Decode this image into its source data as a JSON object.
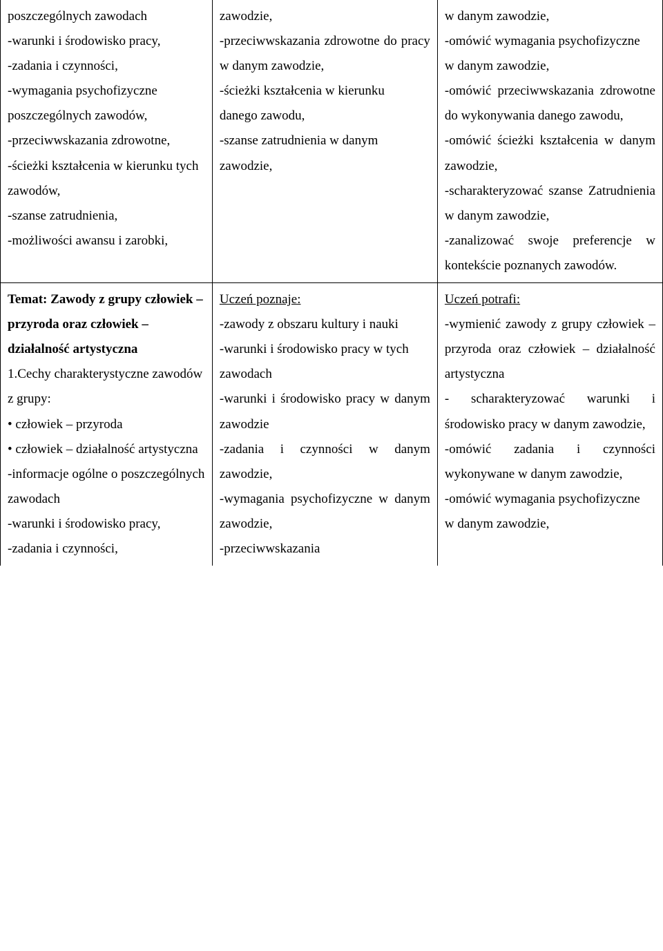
{
  "row1": {
    "col1": [
      "poszczególnych zawodach",
      "-warunki i środowisko pracy,",
      "-zadania i czynności,",
      "-wymagania psychofizyczne poszczególnych zawodów,",
      "-przeciwwskazania zdrowotne,",
      "-ścieżki kształcenia w kierunku tych zawodów,",
      "-szanse zatrudnienia,",
      "-możliwości awansu i zarobki,"
    ],
    "col2": [
      "zawodzie,",
      "-przeciwwskazania zdrowotne do pracy w danym zawodzie,",
      "-ścieżki kształcenia w kierunku",
      "danego zawodu,",
      "-szanse zatrudnienia w danym",
      "zawodzie,"
    ],
    "col3": [
      "w danym zawodzie,",
      "-omówić wymagania psychofizyczne",
      "w danym zawodzie,",
      "-omówić przeciwwskazania zdrowotne do wykonywania danego zawodu,",
      "-omówić ścieżki kształcenia w danym zawodzie,",
      "-scharakteryzować szanse Zatrudnienia w danym zawodzie,",
      "-zanalizować swoje preferencje w kontekście poznanych zawodów."
    ]
  },
  "row2": {
    "col1": {
      "title": "Temat: Zawody z grupy człowiek – przyroda oraz człowiek – działalność artystyczna",
      "sub": "1.Cechy charakterystyczne zawodów z grupy:",
      "bullets": [
        "człowiek – przyroda",
        "człowiek – działalność artystyczna"
      ],
      "dashes": [
        "-informacje ogólne o poszczególnych zawodach",
        "-warunki i środowisko pracy,",
        "-zadania i czynności,"
      ]
    },
    "col2": {
      "header": "Uczeń poznaje:",
      "items": [
        "-zawody z obszaru kultury i nauki",
        "-warunki i środowisko pracy w tych",
        "zawodach",
        "-warunki i środowisko pracy w danym zawodzie",
        "-zadania i czynności w danym zawodzie,",
        "-wymagania psychofizyczne w danym zawodzie,",
        "-przeciwwskazania"
      ]
    },
    "col3": {
      "header": "Uczeń potrafi:",
      "items": [
        "-wymienić zawody z grupy człowiek – przyroda oraz człowiek – działalność artystyczna",
        "- scharakteryzować warunki i środowisko pracy w danym zawodzie,",
        "-omówić zadania i czynności wykonywane w danym zawodzie,",
        "-omówić wymagania psychofizyczne",
        "w danym zawodzie,"
      ]
    }
  }
}
